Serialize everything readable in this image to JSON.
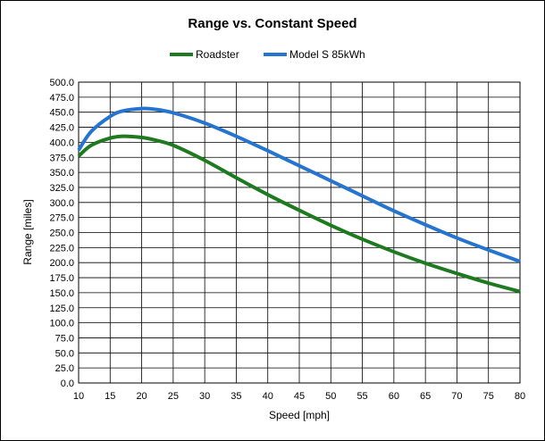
{
  "chart_data": {
    "type": "line",
    "title": "Range vs. Constant Speed",
    "xlabel": "Speed [mph]",
    "ylabel": "Range [miles]",
    "xlim": [
      10,
      80
    ],
    "ylim": [
      0,
      500
    ],
    "x_ticks": [
      "10",
      "15",
      "20",
      "25",
      "30",
      "35",
      "40",
      "45",
      "50",
      "55",
      "60",
      "65",
      "70",
      "75",
      "80"
    ],
    "y_ticks": [
      "0.0",
      "25.0",
      "50.0",
      "75.0",
      "100.0",
      "125.0",
      "150.0",
      "175.0",
      "200.0",
      "225.0",
      "250.0",
      "275.0",
      "300.0",
      "325.0",
      "350.0",
      "375.0",
      "400.0",
      "425.0",
      "450.0",
      "475.0",
      "500.0"
    ],
    "grid": true,
    "legend_position": "top",
    "x": [
      10,
      12,
      15,
      17,
      20,
      22,
      25,
      30,
      35,
      40,
      45,
      50,
      55,
      60,
      65,
      70,
      75,
      80
    ],
    "series": [
      {
        "name": "Roadster",
        "color": "#1e7a1e",
        "values": [
          377,
          395,
          407,
          410,
          408,
          404,
          395,
          370,
          341,
          313,
          287,
          262,
          239,
          218,
          199,
          182,
          166,
          152
        ]
      },
      {
        "name": "Model S 85kWh",
        "color": "#2474d0",
        "values": [
          387,
          418,
          443,
          452,
          456,
          455,
          449,
          432,
          410,
          386,
          361,
          336,
          311,
          286,
          263,
          241,
          221,
          202
        ]
      }
    ]
  }
}
